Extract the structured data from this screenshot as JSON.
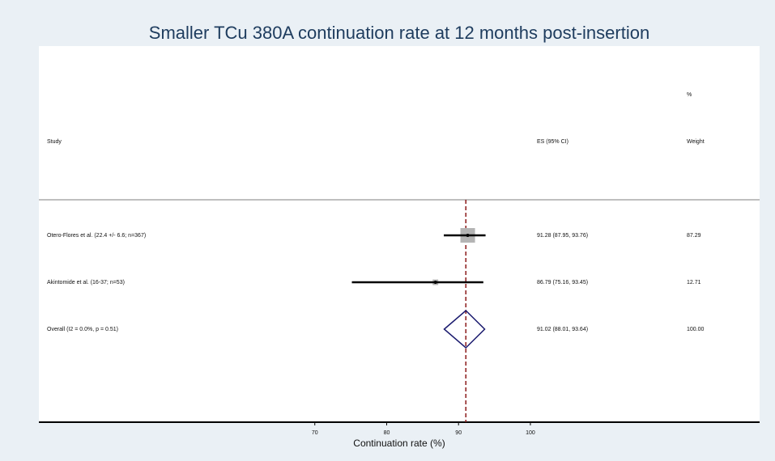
{
  "chart_data": {
    "type": "forest",
    "title": "Smaller TCu 380A continuation rate at 12 months post-insertion",
    "xlabel": "Continuation rate (%)",
    "columns": {
      "study": "Study",
      "es": "ES (95% CI)",
      "weight_top": "%",
      "weight": "Weight"
    },
    "categories": [
      "Otero-Flores et al. (22.4 +/- 6.6; n=367)",
      "Akintomide et al. (16-37; n=53)"
    ],
    "values": [
      91.28,
      86.79
    ],
    "ci_low": [
      87.95,
      75.16
    ],
    "ci_high": [
      93.76,
      93.45
    ],
    "value_labels": [
      "91.28 (87.95, 93.76)",
      "86.79 (75.16, 93.45)"
    ],
    "weights": [
      87.29,
      12.71
    ],
    "weight_labels": [
      "87.29",
      "12.71"
    ],
    "overall": {
      "label": "Overall  (I2 = 0.0%, p = 0.51)",
      "value": 91.02,
      "ci_low": 88.01,
      "ci_high": 93.64,
      "value_label": "91.02 (88.01, 93.64)",
      "weight": 100,
      "weight_label": "100.00"
    },
    "xlim": [
      31.6,
      131.9
    ],
    "xticks": [
      70,
      80,
      90,
      100
    ],
    "box_color": "#b4b4b4",
    "diamond_color": "#1a1a6e",
    "refline_color": "#8b1a1a"
  }
}
